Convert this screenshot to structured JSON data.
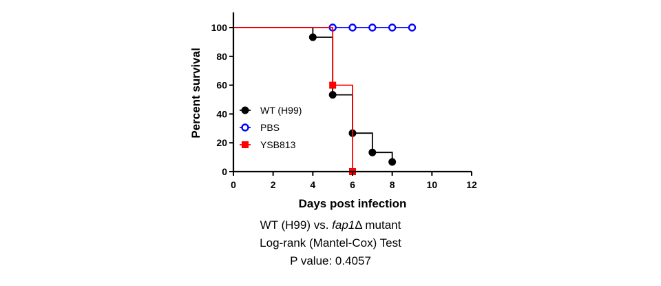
{
  "chart_data": {
    "type": "line",
    "step": true,
    "xlabel": "Days post infection",
    "ylabel": "Percent survival",
    "xlim": [
      0,
      12
    ],
    "ylim": [
      0,
      100
    ],
    "x_ticks": [
      "0",
      "2",
      "4",
      "6",
      "8",
      "10",
      "12"
    ],
    "y_ticks": [
      "0",
      "20",
      "40",
      "60",
      "80",
      "100"
    ],
    "grid": false,
    "legend_position": "left-middle",
    "series": [
      {
        "name": "WT (H99)",
        "color": "#000000",
        "marker": "filled-circle",
        "steps": [
          [
            0,
            100
          ],
          [
            4,
            93.3
          ],
          [
            5,
            53.3
          ],
          [
            6,
            26.7
          ],
          [
            7,
            13.3
          ],
          [
            8,
            6.7
          ]
        ],
        "points": [
          [
            4,
            93.3
          ],
          [
            5,
            53.3
          ],
          [
            6,
            26.7
          ],
          [
            7,
            13.3
          ],
          [
            8,
            6.7
          ]
        ]
      },
      {
        "name": "PBS",
        "color": "#0000ff",
        "marker": "open-circle",
        "steps": [
          [
            0,
            100
          ],
          [
            9,
            100
          ]
        ],
        "points": [
          [
            5,
            100
          ],
          [
            6,
            100
          ],
          [
            7,
            100
          ],
          [
            8,
            100
          ],
          [
            9,
            100
          ]
        ]
      },
      {
        "name": "YSB813",
        "color": "#ff0000",
        "marker": "filled-square",
        "steps": [
          [
            0,
            100
          ],
          [
            5,
            60
          ],
          [
            6,
            0
          ]
        ],
        "points": [
          [
            5,
            60
          ],
          [
            6,
            0
          ]
        ]
      }
    ]
  },
  "caption": {
    "line1_prefix": "WT (H99) vs. ",
    "line1_italic": "fap1",
    "line1_suffix": "Δ mutant",
    "line2": "Log-rank (Mantel-Cox) Test",
    "line3": "P value: 0.4057"
  }
}
